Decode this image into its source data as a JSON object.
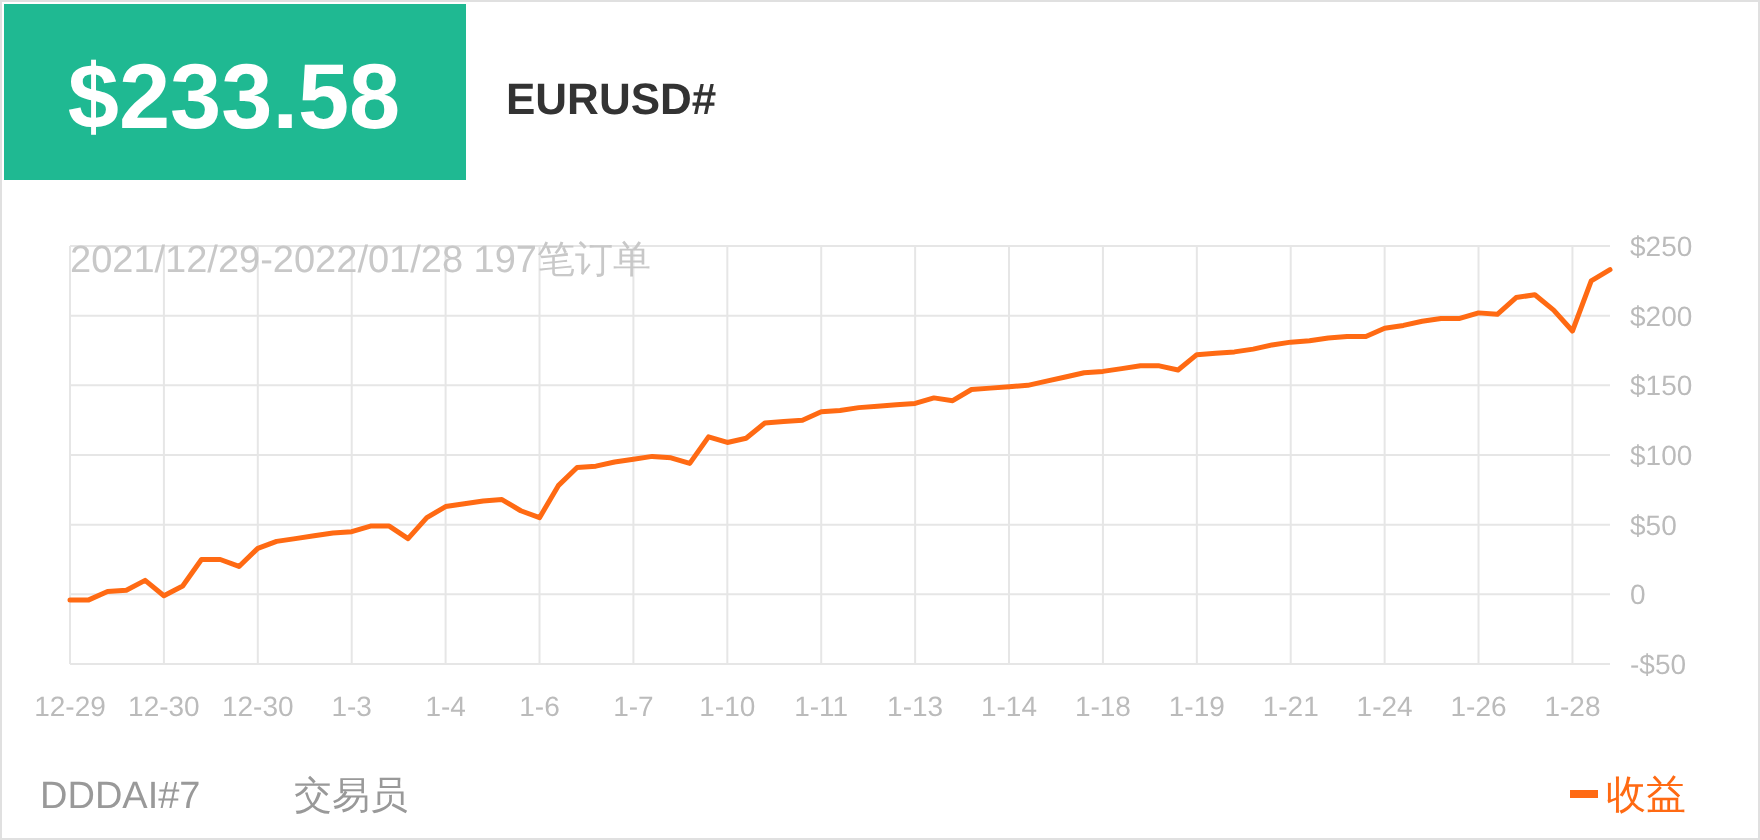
{
  "chart_data": {
    "type": "line",
    "title": "$233.58",
    "subtitle": "EURUSD#",
    "annotations": [
      "2021/12/29-2022/01/28 197笔订单",
      "DDDAI#7",
      "交易员"
    ],
    "categories": [
      "12-29",
      null,
      null,
      null,
      null,
      "12-30",
      null,
      null,
      null,
      null,
      "12-30",
      null,
      null,
      null,
      null,
      "1-3",
      null,
      null,
      null,
      null,
      "1-4",
      null,
      null,
      null,
      null,
      "1-6",
      null,
      null,
      null,
      null,
      "1-7",
      null,
      null,
      null,
      null,
      "1-10",
      null,
      null,
      null,
      null,
      "1-11",
      null,
      null,
      null,
      null,
      "1-13",
      null,
      null,
      null,
      null,
      "1-14",
      null,
      null,
      null,
      null,
      "1-18",
      null,
      null,
      null,
      null,
      "1-19",
      null,
      null,
      null,
      null,
      "1-21",
      null,
      null,
      null,
      null,
      "1-24",
      null,
      null,
      null,
      null,
      "1-26",
      null,
      null,
      null,
      null,
      "1-28",
      null,
      null
    ],
    "ylim": [
      -50,
      250
    ],
    "yticks": [
      {
        "value": -50,
        "label": "-$50"
      },
      0,
      {
        "value": 50,
        "label": "$50"
      },
      {
        "value": 100,
        "label": "$100"
      },
      {
        "value": 150,
        "label": "$150"
      },
      {
        "value": 200,
        "label": "$200"
      },
      {
        "value": 250,
        "label": "$250"
      }
    ],
    "grid": true,
    "legend": "bottom right",
    "marker": "none",
    "line_style": "solid",
    "series": [
      {
        "name": "收益",
        "color": "#ff6a13",
        "values": [
          -4,
          -4,
          2,
          3,
          10,
          -1,
          6,
          25,
          25,
          20,
          33,
          38,
          40,
          42,
          44,
          45,
          49,
          49,
          40,
          55,
          63,
          65,
          67,
          68,
          60,
          55,
          78,
          91,
          92,
          95,
          97,
          99,
          98,
          94,
          113,
          109,
          112,
          123,
          124,
          125,
          131,
          132,
          134,
          135,
          136,
          137,
          141,
          139,
          147,
          148,
          149,
          150,
          153,
          156,
          159,
          160,
          162,
          164,
          164,
          161,
          172,
          173,
          174,
          176,
          179,
          181,
          182,
          184,
          185,
          185,
          191,
          193,
          196,
          198,
          198,
          202,
          201,
          213,
          215,
          204,
          189,
          225,
          233
        ]
      }
    ]
  }
}
